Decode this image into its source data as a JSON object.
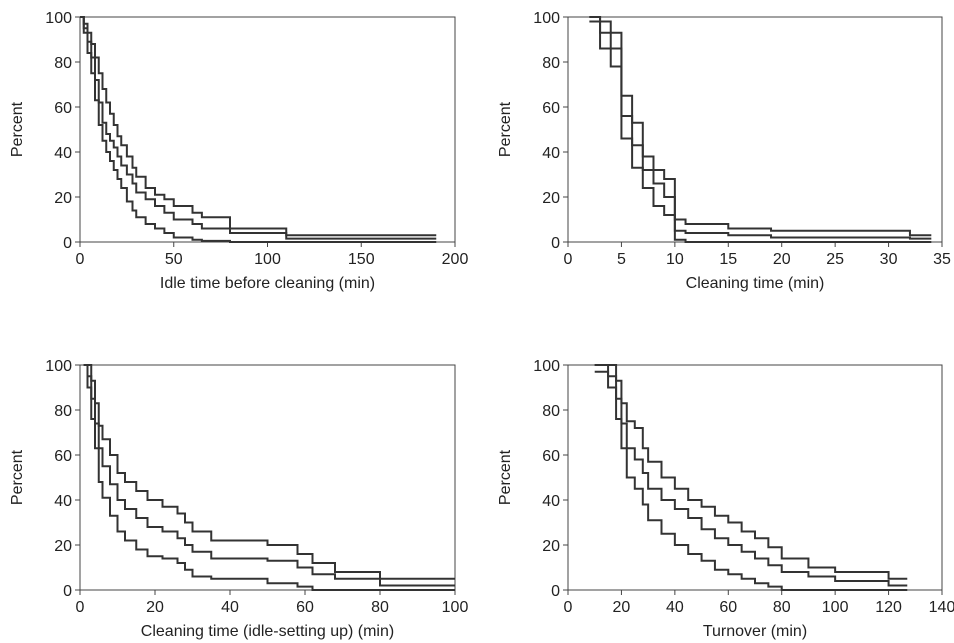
{
  "chart_data": [
    {
      "type": "line",
      "step": true,
      "xlabel": "Idle time before cleaning (min)",
      "ylabel": "Percent",
      "xlim": [
        0,
        200
      ],
      "ylim": [
        0,
        100
      ],
      "xticks": [
        0,
        50,
        100,
        150,
        200
      ],
      "yticks": [
        0,
        20,
        40,
        60,
        80,
        100
      ],
      "grid": false,
      "series": [
        {
          "x": [
            0,
            2,
            4,
            6,
            8,
            10,
            12,
            14,
            16,
            18,
            20,
            22,
            25,
            28,
            30,
            35,
            40,
            45,
            50,
            60,
            65,
            80,
            110,
            190
          ],
          "y": [
            100,
            97,
            93,
            88,
            82,
            75,
            68,
            62,
            57,
            52,
            47,
            43,
            38,
            33,
            29,
            24,
            21,
            19,
            16,
            13,
            11,
            6,
            3,
            3
          ]
        },
        {
          "x": [
            0,
            2,
            4,
            6,
            8,
            10,
            12,
            14,
            16,
            18,
            20,
            22,
            25,
            28,
            30,
            35,
            40,
            45,
            50,
            60,
            65,
            80,
            110,
            190
          ],
          "y": [
            100,
            95,
            89,
            82,
            72,
            62,
            53,
            48,
            45,
            42,
            38,
            34,
            30,
            26,
            22,
            19,
            16,
            13,
            10,
            8,
            6,
            4,
            1.5,
            1.5
          ]
        },
        {
          "x": [
            0,
            2,
            4,
            6,
            8,
            10,
            12,
            14,
            16,
            18,
            20,
            22,
            25,
            28,
            30,
            35,
            40,
            45,
            50,
            60,
            65,
            80,
            110,
            190
          ],
          "y": [
            100,
            93,
            84,
            75,
            63,
            52,
            45,
            40,
            36,
            32,
            28,
            24,
            18,
            14,
            11,
            8,
            6,
            4,
            2,
            1,
            0.5,
            0,
            0,
            0
          ]
        }
      ]
    },
    {
      "type": "line",
      "step": true,
      "xlabel": "Cleaning time (min)",
      "ylabel": "Percent",
      "xlim": [
        0,
        35
      ],
      "ylim": [
        0,
        100
      ],
      "xticks": [
        0,
        5,
        10,
        15,
        20,
        25,
        30,
        35
      ],
      "yticks": [
        0,
        20,
        40,
        60,
        80,
        100
      ],
      "grid": false,
      "series": [
        {
          "x": [
            2,
            3,
            4,
            5,
            6,
            7,
            8,
            9,
            10,
            11,
            15,
            19,
            32,
            34
          ],
          "y": [
            100,
            98,
            93,
            65,
            53,
            38,
            32,
            28,
            10,
            8,
            6,
            5,
            3,
            3
          ]
        },
        {
          "x": [
            2,
            3,
            4,
            5,
            6,
            7,
            8,
            9,
            10,
            11,
            15,
            19,
            32,
            34
          ],
          "y": [
            100,
            93,
            86,
            56,
            43,
            32,
            26,
            20,
            5,
            4,
            3,
            2,
            1.5,
            1.5
          ]
        },
        {
          "x": [
            2,
            3,
            4,
            5,
            6,
            7,
            8,
            9,
            10,
            11,
            15,
            19,
            32,
            34
          ],
          "y": [
            98,
            86,
            78,
            46,
            33,
            24,
            16,
            12,
            1,
            0,
            0,
            0,
            0,
            0
          ]
        }
      ]
    },
    {
      "type": "line",
      "step": true,
      "xlabel": "Cleaning time (idle-setting up) (min)",
      "ylabel": "Percent",
      "xlim": [
        0,
        100
      ],
      "ylim": [
        0,
        100
      ],
      "xticks": [
        0,
        20,
        40,
        60,
        80,
        100
      ],
      "yticks": [
        0,
        20,
        40,
        60,
        80,
        100
      ],
      "grid": false,
      "series": [
        {
          "x": [
            1,
            2,
            3,
            4,
            5,
            6,
            8,
            10,
            12,
            15,
            18,
            22,
            26,
            28,
            30,
            35,
            50,
            58,
            62,
            68,
            80,
            100
          ],
          "y": [
            100,
            100,
            93,
            83,
            73,
            67,
            60,
            52,
            48,
            44,
            40,
            37,
            34,
            30,
            26,
            22,
            20,
            16,
            12,
            8,
            5,
            5
          ]
        },
        {
          "x": [
            1,
            2,
            3,
            4,
            5,
            6,
            8,
            10,
            12,
            15,
            18,
            22,
            26,
            28,
            30,
            35,
            50,
            58,
            62,
            68,
            80,
            100
          ],
          "y": [
            100,
            95,
            85,
            74,
            63,
            55,
            47,
            40,
            36,
            32,
            28,
            26,
            23,
            20,
            17,
            14,
            13,
            10,
            7,
            5,
            2,
            2
          ]
        },
        {
          "x": [
            1,
            2,
            3,
            4,
            5,
            6,
            8,
            10,
            12,
            15,
            18,
            22,
            26,
            28,
            30,
            35,
            50,
            58,
            62,
            68,
            80,
            100
          ],
          "y": [
            100,
            90,
            76,
            63,
            48,
            41,
            33,
            26,
            22,
            18,
            15,
            14,
            12,
            9,
            6,
            5,
            3,
            1.5,
            0,
            0,
            0,
            0
          ]
        }
      ]
    },
    {
      "type": "line",
      "step": true,
      "xlabel": "Turnover (min)",
      "ylabel": "Percent",
      "xlim": [
        0,
        140
      ],
      "ylim": [
        0,
        100
      ],
      "xticks": [
        0,
        20,
        40,
        60,
        80,
        100,
        120,
        140
      ],
      "yticks": [
        0,
        20,
        40,
        60,
        80,
        100
      ],
      "grid": false,
      "series": [
        {
          "x": [
            10,
            15,
            18,
            20,
            22,
            25,
            28,
            30,
            35,
            40,
            45,
            50,
            55,
            60,
            65,
            70,
            75,
            80,
            90,
            100,
            120,
            127
          ],
          "y": [
            100,
            100,
            93,
            83,
            75,
            72,
            63,
            57,
            50,
            45,
            40,
            37,
            33,
            30,
            26,
            23,
            19,
            14,
            10,
            8,
            5,
            5
          ]
        },
        {
          "x": [
            10,
            15,
            18,
            20,
            22,
            25,
            28,
            30,
            35,
            40,
            45,
            50,
            55,
            60,
            65,
            70,
            75,
            80,
            90,
            100,
            120,
            127
          ],
          "y": [
            100,
            95,
            85,
            74,
            63,
            58,
            52,
            45,
            40,
            36,
            32,
            27,
            23,
            20,
            17,
            14,
            11,
            8,
            6,
            4,
            2,
            2
          ]
        },
        {
          "x": [
            10,
            15,
            18,
            20,
            22,
            25,
            28,
            30,
            35,
            40,
            45,
            50,
            55,
            60,
            65,
            70,
            75,
            80,
            90,
            100,
            120,
            127
          ],
          "y": [
            97,
            90,
            76,
            63,
            50,
            45,
            38,
            31,
            25,
            20,
            16,
            13,
            9,
            7,
            5,
            3,
            1.5,
            0,
            0,
            0,
            0,
            0
          ]
        }
      ]
    }
  ]
}
